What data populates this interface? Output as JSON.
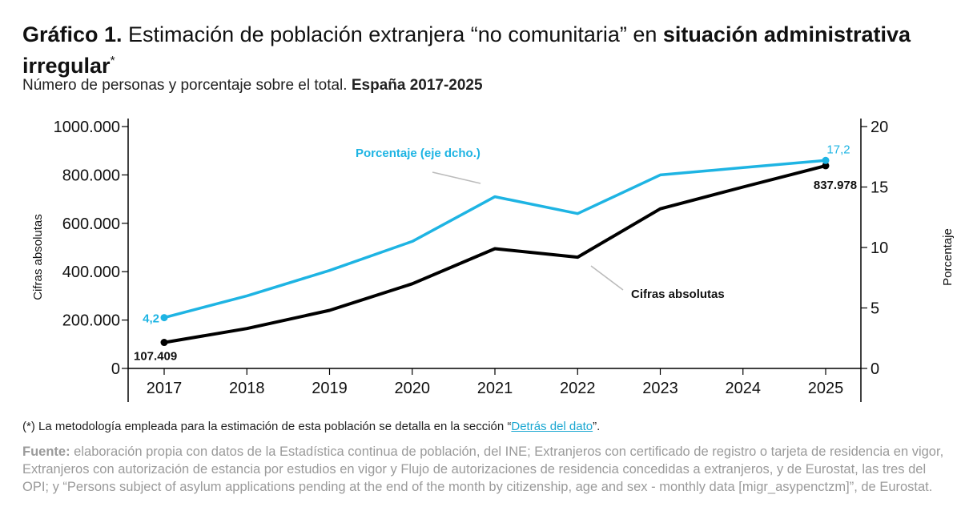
{
  "header": {
    "title_bold": "Gráfico 1.",
    "title_regular": " Estimación de población extranjera “no comunitaria” en ",
    "title_bold2": "situación administrativa irregular",
    "title_sup": "*",
    "subtitle_regular": "Número de personas y porcentaje sobre el total. ",
    "subtitle_bold": "España 2017-2025"
  },
  "chart_data": {
    "type": "line",
    "x": [
      "2017",
      "2018",
      "2019",
      "2020",
      "2021",
      "2022",
      "2023",
      "2024",
      "2025"
    ],
    "series": [
      {
        "name": "Cifras absolutas",
        "axis": "left",
        "color": "#000000",
        "values": [
          107409,
          165000,
          240000,
          350000,
          495000,
          460000,
          660000,
          750000,
          837978
        ]
      },
      {
        "name": "Porcentaje (eje dcho.)",
        "axis": "right",
        "color": "#1eb4e3",
        "values": [
          4.2,
          6.0,
          8.1,
          10.5,
          14.2,
          12.8,
          16.0,
          16.6,
          17.2
        ]
      }
    ],
    "ylabel_left": "Cifras absolutas",
    "ylabel_right": "Porcentaje",
    "yticks_left": [
      "1000.000",
      "800.000",
      "600.000",
      "400.000",
      "200.000",
      "0"
    ],
    "yticks_right": [
      "20",
      "15",
      "10",
      "5",
      "0"
    ],
    "ylim_left": [
      0,
      1000000
    ],
    "ylim_right": [
      0,
      20
    ],
    "annotations": {
      "start_black": "107.409",
      "end_black": "837.978",
      "start_blue": "4,2",
      "end_blue": "17,2",
      "label_black": "Cifras absolutas",
      "label_blue": "Porcentaje (eje dcho.)"
    }
  },
  "footer": {
    "note_prefix": "(*) La metodología empleada para la estimación de esta población se detalla en la sección “",
    "note_link": "Detrás del dato",
    "note_suffix": "”.",
    "source_label": "Fuente:",
    "source_text": " elaboración propia con datos de la Estadística continua de población, del INE; Extranjeros con certificado de registro o tarjeta de residencia en vigor, Extranjeros con autorización de estancia por estudios en vigor y Flujo de autorizaciones de residencia concedidas a extranjeros, y de Eurostat, las tres del OPI; y “Persons subject of asylum applications pending at the end of the month by citizenship, age and sex - monthly data [migr_asypenctzm]”, de Eurostat."
  }
}
